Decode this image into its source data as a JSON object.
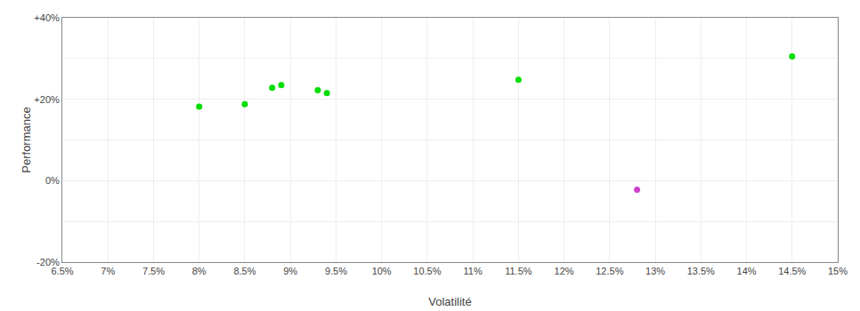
{
  "chart_data": {
    "type": "scatter",
    "x_label": "Volatilité",
    "y_label": "Performance",
    "xlim": [
      0.065,
      0.15
    ],
    "ylim": [
      -0.2,
      0.4
    ],
    "xticks": [
      {
        "value": 0.065,
        "label": "6.5%"
      },
      {
        "value": 0.07,
        "label": "7%"
      },
      {
        "value": 0.075,
        "label": "7.5%"
      },
      {
        "value": 0.08,
        "label": "8%"
      },
      {
        "value": 0.085,
        "label": "8.5%"
      },
      {
        "value": 0.09,
        "label": "9%"
      },
      {
        "value": 0.095,
        "label": "9.5%"
      },
      {
        "value": 0.1,
        "label": "10%"
      },
      {
        "value": 0.105,
        "label": "10.5%"
      },
      {
        "value": 0.11,
        "label": "11%"
      },
      {
        "value": 0.115,
        "label": "11.5%"
      },
      {
        "value": 0.12,
        "label": "12%"
      },
      {
        "value": 0.125,
        "label": "12.5%"
      },
      {
        "value": 0.13,
        "label": "13%"
      },
      {
        "value": 0.135,
        "label": "13.5%"
      },
      {
        "value": 0.14,
        "label": "14%"
      },
      {
        "value": 0.145,
        "label": "14.5%"
      },
      {
        "value": 0.15,
        "label": "15%"
      }
    ],
    "yticks": [
      {
        "value": -0.2,
        "label": "-20%"
      },
      {
        "value": -0.1,
        "label": null
      },
      {
        "value": 0.0,
        "label": "0%"
      },
      {
        "value": 0.1,
        "label": null
      },
      {
        "value": 0.2,
        "label": "+20%"
      },
      {
        "value": 0.3,
        "label": null
      },
      {
        "value": 0.4,
        "label": "+40%"
      }
    ],
    "grid": true,
    "marker": "circle",
    "series": [
      {
        "color": "#00dd00",
        "x": [
          0.08,
          0.085,
          0.088,
          0.089,
          0.093,
          0.094,
          0.115,
          0.145
        ],
        "values": [
          0.182,
          0.188,
          0.228,
          0.235,
          0.222,
          0.215,
          0.248,
          0.305
        ]
      },
      {
        "color": "#cc44cc",
        "x": [
          0.128
        ],
        "values": [
          -0.022
        ]
      }
    ]
  }
}
